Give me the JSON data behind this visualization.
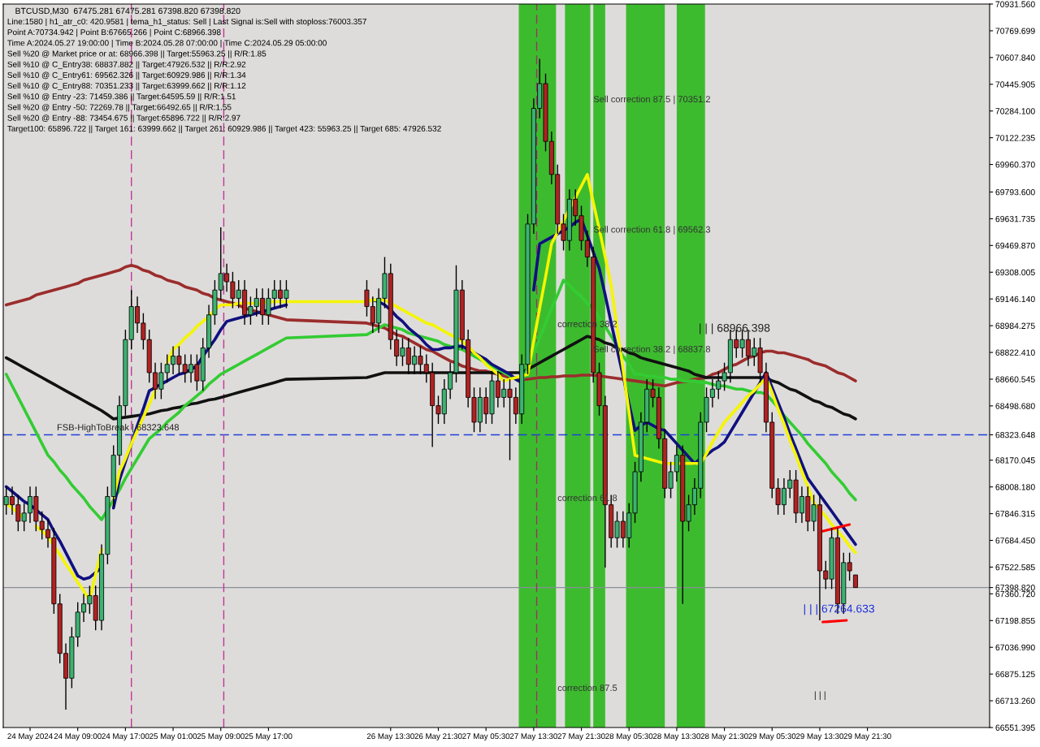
{
  "chart_data": {
    "type": "candlestick",
    "title": "BTCUSD,M30  67475.281 67475.281 67398.820 67398.820",
    "x": [
      "2024-05-23T21:00",
      "2024-05-23T22:00",
      "2024-05-23T23:00",
      "2024-05-24T00:00",
      "2024-05-24T01:00",
      "2024-05-24T02:00",
      "2024-05-24T03:00",
      "2024-05-24T04:00",
      "2024-05-24T05:00",
      "2024-05-24T06:00",
      "2024-05-24T07:00",
      "2024-05-24T08:00",
      "2024-05-24T09:00",
      "2024-05-24T10:00",
      "2024-05-24T11:00",
      "2024-05-24T12:00",
      "2024-05-24T13:00",
      "2024-05-24T14:00",
      "2024-05-24T15:00",
      "2024-05-24T16:00",
      "2024-05-24T17:00",
      "2024-05-24T18:00",
      "2024-05-24T19:00",
      "2024-05-24T20:00",
      "2024-05-24T21:00",
      "2024-05-24T22:00",
      "2024-05-24T23:00",
      "2024-05-25T00:00",
      "2024-05-25T01:00",
      "2024-05-25T02:00",
      "2024-05-25T03:00",
      "2024-05-25T04:00",
      "2024-05-25T05:00",
      "2024-05-25T06:00",
      "2024-05-25T07:00",
      "2024-05-25T08:00",
      "2024-05-25T09:00",
      "2024-05-25T10:00",
      "2024-05-25T11:00",
      "2024-05-25T12:00",
      "2024-05-25T13:00",
      "2024-05-25T14:00",
      "2024-05-25T15:00",
      "2024-05-25T16:00",
      "2024-05-25T17:00",
      "2024-05-25T18:00",
      "2024-05-25T19:00",
      "2024-05-25T20:00",
      "2024-05-26T09:30",
      "2024-05-26T10:30",
      "2024-05-26T11:30",
      "2024-05-26T12:30",
      "2024-05-26T13:30",
      "2024-05-26T14:30",
      "2024-05-26T15:30",
      "2024-05-26T16:30",
      "2024-05-26T17:30",
      "2024-05-26T18:30",
      "2024-05-26T19:30",
      "2024-05-26T20:30",
      "2024-05-26T21:30",
      "2024-05-26T22:30",
      "2024-05-26T23:30",
      "2024-05-27T00:30",
      "2024-05-27T01:30",
      "2024-05-27T02:30",
      "2024-05-27T03:30",
      "2024-05-27T04:30",
      "2024-05-27T05:30",
      "2024-05-27T06:30",
      "2024-05-27T07:30",
      "2024-05-27T08:30",
      "2024-05-27T09:30",
      "2024-05-27T10:30",
      "2024-05-27T11:30",
      "2024-05-27T12:30",
      "2024-05-27T13:30",
      "2024-05-27T14:30",
      "2024-05-27T15:30",
      "2024-05-27T16:30",
      "2024-05-27T17:30",
      "2024-05-27T18:30",
      "2024-05-27T19:30",
      "2024-05-27T20:30",
      "2024-05-27T21:30",
      "2024-05-27T22:30",
      "2024-05-27T23:30",
      "2024-05-28T00:30",
      "2024-05-28T01:30",
      "2024-05-28T02:30",
      "2024-05-28T03:30",
      "2024-05-28T04:30",
      "2024-05-28T05:30",
      "2024-05-28T06:30",
      "2024-05-28T07:30",
      "2024-05-28T08:30",
      "2024-05-28T09:30",
      "2024-05-28T10:30",
      "2024-05-28T11:30",
      "2024-05-28T12:30",
      "2024-05-28T13:30",
      "2024-05-28T14:30",
      "2024-05-28T15:30",
      "2024-05-28T16:30",
      "2024-05-28T17:30",
      "2024-05-28T18:30",
      "2024-05-28T19:30",
      "2024-05-28T20:30",
      "2024-05-28T21:30",
      "2024-05-28T22:30",
      "2024-05-28T23:30",
      "2024-05-29T00:30",
      "2024-05-29T01:30",
      "2024-05-29T02:30",
      "2024-05-29T03:30",
      "2024-05-29T04:30",
      "2024-05-29T05:30",
      "2024-05-29T06:30",
      "2024-05-29T07:30",
      "2024-05-29T08:30",
      "2024-05-29T09:30",
      "2024-05-29T10:30",
      "2024-05-29T11:30",
      "2024-05-29T12:30",
      "2024-05-29T13:30",
      "2024-05-29T14:30",
      "2024-05-29T15:30",
      "2024-05-29T16:30",
      "2024-05-29T17:30",
      "2024-05-29T18:30",
      "2024-05-29T19:30"
    ],
    "ohlc": [
      [
        67900,
        68010,
        67840,
        67950
      ],
      [
        67950,
        68010,
        67840,
        67900
      ],
      [
        67900,
        67960,
        67740,
        67800
      ],
      [
        67800,
        67910,
        67740,
        67850
      ],
      [
        67850,
        68010,
        67790,
        67950
      ],
      [
        67950,
        68010,
        67740,
        67800
      ],
      [
        67800,
        67860,
        67690,
        67750
      ],
      [
        67750,
        67810,
        67640,
        67700
      ],
      [
        67700,
        67760,
        67240,
        67300
      ],
      [
        67300,
        67360,
        66940,
        67000
      ],
      [
        67000,
        67060,
        66660,
        66850
      ],
      [
        66850,
        67160,
        66790,
        67100
      ],
      [
        67100,
        67310,
        67040,
        67250
      ],
      [
        67250,
        67360,
        67190,
        67300
      ],
      [
        67300,
        67410,
        67240,
        67350
      ],
      [
        67350,
        67410,
        67140,
        67200
      ],
      [
        67200,
        67660,
        67140,
        67600
      ],
      [
        67600,
        68010,
        67540,
        67950
      ],
      [
        67950,
        68260,
        67890,
        68200
      ],
      [
        68200,
        68560,
        68140,
        68500
      ],
      [
        68500,
        68960,
        68440,
        68900
      ],
      [
        68900,
        69200,
        68840,
        69100
      ],
      [
        69100,
        69160,
        68940,
        69000
      ],
      [
        69000,
        69060,
        68840,
        68900
      ],
      [
        68900,
        68960,
        68640,
        68700
      ],
      [
        68700,
        68760,
        68540,
        68600
      ],
      [
        68600,
        68760,
        68540,
        68700
      ],
      [
        68700,
        68810,
        68640,
        68750
      ],
      [
        68750,
        68860,
        68690,
        68800
      ],
      [
        68800,
        68860,
        68690,
        68750
      ],
      [
        68750,
        68810,
        68640,
        68700
      ],
      [
        68700,
        68810,
        68640,
        68750
      ],
      [
        68750,
        68810,
        68590,
        68650
      ],
      [
        68650,
        68910,
        68590,
        68850
      ],
      [
        68850,
        69110,
        68790,
        69050
      ],
      [
        69050,
        69260,
        68990,
        69200
      ],
      [
        69200,
        69580,
        69140,
        69300
      ],
      [
        69300,
        69360,
        69190,
        69250
      ],
      [
        69250,
        69310,
        69090,
        69150
      ],
      [
        69150,
        69260,
        69090,
        69200
      ],
      [
        69200,
        69260,
        68990,
        69050
      ],
      [
        69050,
        69160,
        68990,
        69100
      ],
      [
        69100,
        69210,
        69040,
        69150
      ],
      [
        69150,
        69210,
        68990,
        69050
      ],
      [
        69050,
        69210,
        68990,
        69150
      ],
      [
        69150,
        69260,
        69090,
        69200
      ],
      [
        69200,
        69260,
        69090,
        69150
      ],
      [
        69150,
        69260,
        69090,
        69200
      ],
      [
        69200,
        69260,
        69040,
        69100
      ],
      [
        69100,
        69160,
        68940,
        69000
      ],
      [
        69000,
        69210,
        68940,
        69150
      ],
      [
        69150,
        69400,
        69090,
        69300
      ],
      [
        69300,
        69360,
        68840,
        68900
      ],
      [
        68900,
        68960,
        68740,
        68800
      ],
      [
        68800,
        68910,
        68740,
        68850
      ],
      [
        68850,
        68910,
        68690,
        68750
      ],
      [
        68750,
        68860,
        68690,
        68800
      ],
      [
        68800,
        68860,
        68690,
        68750
      ],
      [
        68750,
        68810,
        68640,
        68700
      ],
      [
        68700,
        68760,
        68250,
        68500
      ],
      [
        68500,
        68560,
        68390,
        68450
      ],
      [
        68450,
        68660,
        68390,
        68600
      ],
      [
        68600,
        68760,
        68540,
        68700
      ],
      [
        68700,
        69350,
        68640,
        69200
      ],
      [
        69200,
        69260,
        68840,
        68900
      ],
      [
        68900,
        68960,
        68490,
        68550
      ],
      [
        68550,
        68610,
        68340,
        68400
      ],
      [
        68400,
        68610,
        68340,
        68550
      ],
      [
        68550,
        68610,
        68390,
        68450
      ],
      [
        68450,
        68710,
        68390,
        68650
      ],
      [
        68650,
        68710,
        68490,
        68550
      ],
      [
        68550,
        68660,
        68490,
        68600
      ],
      [
        68600,
        68660,
        68170,
        68550
      ],
      [
        68550,
        68610,
        68390,
        68450
      ],
      [
        68450,
        68810,
        68390,
        68750
      ],
      [
        68750,
        69660,
        68690,
        69600
      ],
      [
        69600,
        70360,
        69540,
        70300
      ],
      [
        70300,
        70600,
        70240,
        70450
      ],
      [
        70450,
        70510,
        70040,
        70100
      ],
      [
        70100,
        70160,
        69840,
        69900
      ],
      [
        69900,
        69960,
        69540,
        69600
      ],
      [
        69600,
        69660,
        69440,
        69500
      ],
      [
        69500,
        69810,
        69440,
        69750
      ],
      [
        69750,
        69810,
        69590,
        69650
      ],
      [
        69650,
        69710,
        69440,
        69500
      ],
      [
        69500,
        69560,
        69340,
        69400
      ],
      [
        69400,
        69460,
        68640,
        68700
      ],
      [
        68700,
        68760,
        68440,
        68500
      ],
      [
        68500,
        68560,
        67520,
        67900
      ],
      [
        67900,
        67960,
        67640,
        67700
      ],
      [
        67700,
        67860,
        67640,
        67800
      ],
      [
        67800,
        67860,
        67640,
        67700
      ],
      [
        67700,
        67910,
        67640,
        67850
      ],
      [
        67850,
        68160,
        67790,
        68100
      ],
      [
        68100,
        68460,
        68040,
        68400
      ],
      [
        68400,
        68660,
        68340,
        68600
      ],
      [
        68600,
        68660,
        68490,
        68550
      ],
      [
        68550,
        68610,
        68240,
        68300
      ],
      [
        68300,
        68360,
        67940,
        68000
      ],
      [
        68000,
        68160,
        67940,
        68100
      ],
      [
        68100,
        68260,
        68040,
        68200
      ],
      [
        68200,
        68260,
        67300,
        67800
      ],
      [
        67800,
        67960,
        67740,
        67900
      ],
      [
        67900,
        68060,
        67840,
        68000
      ],
      [
        68000,
        68460,
        67940,
        68400
      ],
      [
        68400,
        68610,
        68340,
        68550
      ],
      [
        68550,
        68660,
        68490,
        68600
      ],
      [
        68600,
        68710,
        68540,
        68650
      ],
      [
        68650,
        68760,
        68590,
        68700
      ],
      [
        68700,
        68960,
        68640,
        68900
      ],
      [
        68900,
        68960,
        68790,
        68850
      ],
      [
        68850,
        68960,
        68790,
        68900
      ],
      [
        68900,
        68960,
        68740,
        68800
      ],
      [
        68800,
        68910,
        68740,
        68850
      ],
      [
        68850,
        68910,
        68640,
        68700
      ],
      [
        68700,
        68760,
        68340,
        68400
      ],
      [
        68400,
        68460,
        67940,
        68000
      ],
      [
        68000,
        68060,
        67840,
        67900
      ],
      [
        67900,
        68060,
        67840,
        68000
      ],
      [
        68000,
        68110,
        67940,
        68050
      ],
      [
        68050,
        68110,
        67790,
        67850
      ],
      [
        67850,
        68010,
        67790,
        67950
      ],
      [
        67950,
        68010,
        67740,
        67800
      ],
      [
        67800,
        67960,
        67740,
        67900
      ],
      [
        67900,
        67960,
        67200,
        67500
      ],
      [
        67500,
        67560,
        67390,
        67450
      ],
      [
        67450,
        67760,
        67390,
        67700
      ],
      [
        67700,
        67760,
        67240,
        67300
      ],
      [
        67300,
        67610,
        67240,
        67550
      ],
      [
        67550,
        67610,
        67440,
        67500
      ],
      [
        67475.281,
        67475.281,
        67398.82,
        67398.82
      ]
    ],
    "series": [
      {
        "type": "line",
        "color": "#9b2d2d",
        "values": [
          69110,
          69120,
          69130,
          69140,
          69150,
          69170,
          69180,
          69190,
          69200,
          69210,
          69220,
          69230,
          69240,
          69260,
          69270,
          69280,
          69290,
          69300,
          69310,
          69320,
          69340,
          69350,
          69340,
          69320,
          69310,
          69290,
          69280,
          69260,
          69250,
          69240,
          69220,
          69210,
          69200,
          69180,
          69170,
          69150,
          69140,
          69130,
          69120,
          69110,
          69090,
          69080,
          69070,
          69060,
          69050,
          69040,
          69030,
          69020,
          69000,
          68990,
          68980,
          68970,
          68950,
          68930,
          68920,
          68900,
          68880,
          68860,
          68840,
          68830,
          68810,
          68790,
          68770,
          68760,
          68740,
          68730,
          68720,
          68710,
          68710,
          68700,
          68690,
          68680,
          68670,
          68670,
          68660,
          68660,
          68665,
          68670,
          68670,
          68675,
          68675,
          68680,
          68680,
          68680,
          68685,
          68685,
          68685,
          68680,
          68675,
          68670,
          68665,
          68660,
          68655,
          68650,
          68645,
          68640,
          68630,
          68625,
          68620,
          68630,
          68640,
          68645,
          68650,
          68660,
          68665,
          68670,
          68690,
          68700,
          68720,
          68740,
          68750,
          68770,
          68790,
          68800,
          68820,
          68830,
          68830,
          68820,
          68820,
          68810,
          68800,
          68790,
          68780,
          68760,
          68750,
          68740,
          68720,
          68700,
          68690,
          68670,
          68650
        ]
      },
      {
        "type": "line",
        "color": "#111111",
        "values": [
          68790,
          68770,
          68750,
          68730,
          68710,
          68690,
          68670,
          68650,
          68630,
          68610,
          68590,
          68570,
          68550,
          68530,
          68510,
          68490,
          68470,
          68445,
          68420,
          68425,
          68430,
          68435,
          68440,
          68445,
          68450,
          68460,
          68470,
          68475,
          68485,
          68490,
          68500,
          68510,
          68515,
          68525,
          68535,
          68540,
          68550,
          68560,
          68570,
          68580,
          68590,
          68600,
          68610,
          68620,
          68630,
          68640,
          68650,
          68660,
          68670,
          68680,
          68690,
          68700,
          68700,
          68700,
          68700,
          68700,
          68700,
          68700,
          68700,
          68700,
          68700,
          68700,
          68700,
          68700,
          68700,
          68700,
          68700,
          68700,
          68700,
          68700,
          68700,
          68700,
          68700,
          68700,
          68700,
          68720,
          68740,
          68760,
          68780,
          68800,
          68820,
          68840,
          68860,
          68880,
          68900,
          68920,
          68910,
          68900,
          68880,
          68870,
          68850,
          68840,
          68820,
          68810,
          68790,
          68780,
          68770,
          68760,
          68750,
          68740,
          68730,
          68720,
          68710,
          68690,
          68680,
          68670,
          68670,
          68670,
          68670,
          68670,
          68670,
          68670,
          68670,
          68670,
          68670,
          68670,
          68650,
          68640,
          68620,
          68600,
          68590,
          68570,
          68550,
          68530,
          68520,
          68500,
          68490,
          68470,
          68450,
          68440,
          68420
        ]
      },
      {
        "type": "line",
        "color": "#33cc33",
        "values": [
          68690,
          68620,
          68550,
          68480,
          68410,
          68340,
          68270,
          68200,
          68160,
          68110,
          68070,
          68020,
          67980,
          67940,
          67890,
          67850,
          67810,
          67870,
          67930,
          67990,
          68060,
          68120,
          68180,
          68240,
          68300,
          68330,
          68360,
          68400,
          68430,
          68460,
          68500,
          68530,
          68560,
          68590,
          68630,
          68660,
          68690,
          68710,
          68730,
          68750,
          68770,
          68790,
          68810,
          68830,
          68850,
          68870,
          68890,
          68910,
          68930,
          68950,
          68970,
          68990,
          68980,
          68970,
          68960,
          68940,
          68930,
          68920,
          68910,
          68900,
          68890,
          68870,
          68860,
          68850,
          68840,
          68820,
          68800,
          68780,
          68760,
          68740,
          68720,
          68700,
          68680,
          68660,
          68640,
          68730,
          68820,
          68910,
          69000,
          69090,
          69170,
          69260,
          69230,
          69190,
          69160,
          69120,
          69090,
          69030,
          68980,
          68920,
          68860,
          68800,
          68750,
          68690,
          68690,
          68680,
          68680,
          68670,
          68670,
          68660,
          68660,
          68650,
          68650,
          68650,
          68640,
          68640,
          68630,
          68620,
          68620,
          68610,
          68600,
          68600,
          68590,
          68580,
          68580,
          68570,
          68530,
          68490,
          68440,
          68400,
          68360,
          68320,
          68270,
          68230,
          68190,
          68150,
          68100,
          68060,
          68020,
          67970,
          67930
        ]
      },
      {
        "type": "line",
        "color": "#10107f",
        "values": [
          68010,
          67980,
          67950,
          67920,
          67900,
          67870,
          67840,
          67810,
          67740,
          67680,
          67610,
          67540,
          67470,
          67450,
          67460,
          67490,
          67520,
          null,
          67880,
          68050,
          68160,
          68270,
          68380,
          68480,
          68590,
          68610,
          68630,
          68650,
          68670,
          68690,
          68700,
          68720,
          68740,
          68800,
          68850,
          68900,
          68960,
          69010,
          69020,
          69030,
          69040,
          69050,
          69060,
          69070,
          69080,
          69090,
          69100,
          69110,
          null,
          69140,
          69130,
          69110,
          69080,
          69040,
          69010,
          68970,
          68940,
          68910,
          68870,
          68840,
          68840,
          68850,
          68850,
          68860,
          68860,
          68840,
          68820,
          68800,
          68780,
          68750,
          68730,
          68710,
          68690,
          68660,
          68640,
          null,
          69200,
          69480,
          69500,
          69520,
          69540,
          69560,
          69580,
          69610,
          69630,
          69530,
          69430,
          69330,
          69170,
          69000,
          68840,
          68680,
          68510,
          68350,
          68380,
          68400,
          68380,
          68360,
          68350,
          68310,
          68270,
          68230,
          68190,
          68150,
          68180,
          68200,
          68230,
          68250,
          68280,
          68340,
          68400,
          68460,
          68520,
          68580,
          68640,
          68700,
          68610,
          68520,
          68430,
          68330,
          68240,
          68150,
          68060,
          68010,
          67960,
          67910,
          67860,
          67810,
          67760,
          67710,
          67660
        ]
      },
      {
        "type": "line",
        "color": "#f5f500",
        "values": [
          67910,
          67880,
          67850,
          67820,
          null,
          67770,
          67740,
          67710,
          67650,
          67600,
          67540,
          67490,
          67430,
          67380,
          67320,
          67480,
          67630,
          null,
          67940,
          68100,
          68180,
          68270,
          68350,
          68430,
          68510,
          68590,
          null,
          68760,
          68840,
          68870,
          68910,
          68940,
          68980,
          69010,
          69040,
          69080,
          69110,
          69110,
          69110,
          69120,
          69120,
          69120,
          69120,
          69120,
          69130,
          69130,
          69130,
          69130,
          69130,
          69140,
          69140,
          69140,
          69120,
          69100,
          69080,
          69060,
          69040,
          69020,
          69000,
          68990,
          68970,
          68950,
          68930,
          68910,
          68890,
          68860,
          68820,
          68790,
          68750,
          68720,
          68690,
          68650,
          68660,
          68670,
          68680,
          68690,
          68890,
          69090,
          69280,
          69480,
          69550,
          69620,
          69690,
          69760,
          69830,
          69900,
          69730,
          69570,
          69400,
          69230,
          68970,
          68720,
          68460,
          68200,
          68190,
          68180,
          68170,
          68160,
          68150,
          68150,
          68150,
          68150,
          68150,
          68150,
          68150,
          68210,
          68280,
          68340,
          68400,
          68440,
          68480,
          68520,
          68560,
          68590,
          68630,
          68670,
          68580,
          68480,
          68390,
          68290,
          68200,
          68100,
          68010,
          67910,
          67870,
          67830,
          67780,
          67740,
          67700,
          67650,
          67610
        ]
      },
      {
        "type": "line",
        "color": "#ff0000",
        "x": [
          "2024-05-29T14:00",
          "2024-05-29T18:30"
        ],
        "values": [
          67740,
          67780
        ]
      },
      {
        "type": "line",
        "color": "#ff0000",
        "x": [
          "2024-05-29T14:00",
          "2024-05-29T18:00"
        ],
        "values": [
          67190,
          67200
        ]
      }
    ],
    "xlim": [
      "2024-05-23T20:30",
      "2024-05-30T18:00"
    ],
    "xticks": [
      {
        "value": "2024-05-24T01:00",
        "label": "24 May 2024"
      },
      {
        "value": "2024-05-24T09:00",
        "label": "24 May 09:00"
      },
      {
        "value": "2024-05-24T17:00",
        "label": "24 May 17:00"
      },
      {
        "value": "2024-05-25T01:00",
        "label": "25 May 01:00"
      },
      {
        "value": "2024-05-25T09:00",
        "label": "25 May 09:00"
      },
      {
        "value": "2024-05-25T17:00",
        "label": "25 May 17:00"
      },
      {
        "value": "2024-05-26T13:30",
        "label": "26 May 13:30"
      },
      {
        "value": "2024-05-26T21:30",
        "label": "26 May 21:30"
      },
      {
        "value": "2024-05-27T05:30",
        "label": "27 May 05:30"
      },
      {
        "value": "2024-05-27T13:30",
        "label": "27 May 13:30"
      },
      {
        "value": "2024-05-27T21:30",
        "label": "27 May 21:30"
      },
      {
        "value": "2024-05-28T05:30",
        "label": "28 May 05:30"
      },
      {
        "value": "2024-05-28T13:30",
        "label": "28 May 13:30"
      },
      {
        "value": "2024-05-28T21:30",
        "label": "28 May 21:30"
      },
      {
        "value": "2024-05-29T05:30",
        "label": "29 May 05:30"
      },
      {
        "value": "2024-05-29T13:30",
        "label": "29 May 13:30"
      },
      {
        "value": "2024-05-29T21:30",
        "label": "29 May 21:30"
      }
    ],
    "ylim": [
      66551.395,
      70931.56
    ],
    "yticks": [
      {
        "value": 70931.56,
        "label": "70931.560"
      },
      70769.699,
      {
        "value": 70607.84,
        "label": "70607.840"
      },
      70445.905,
      {
        "value": 70284.1,
        "label": "70284.100"
      },
      70122.235,
      {
        "value": 69960.37,
        "label": "69960.370"
      },
      {
        "value": 69793.6,
        "label": "69793.600"
      },
      69631.735,
      {
        "value": 69469.87,
        "label": "69469.870"
      },
      69308.005,
      {
        "value": 69146.14,
        "label": "69146.140"
      },
      68984.275,
      {
        "value": 68822.41,
        "label": "68822.410"
      },
      68660.545,
      {
        "value": 68498.68,
        "label": "68498.680"
      },
      68323.648,
      68170.045,
      {
        "value": 68008.18,
        "label": "68008.180"
      },
      67846.315,
      {
        "value": 67684.45,
        "label": "67684.450"
      },
      67522.585,
      {
        "value": 67398.82,
        "label": "67398.820"
      },
      {
        "value": 67360.72,
        "label": "67360.720"
      },
      67198.855,
      {
        "value": 67036.99,
        "label": "67036.990"
      },
      66875.125,
      {
        "value": 66713.26,
        "label": "66713.260"
      },
      66551.395
    ],
    "grid": false,
    "bands": [
      {
        "axis": "x",
        "from": "2024-05-27T11:00",
        "to": "2024-05-27T17:15",
        "color": "#3dbb2f"
      },
      {
        "axis": "x",
        "from": "2024-05-27T18:45",
        "to": "2024-05-27T23:00",
        "color": "#3dbb2f"
      },
      {
        "axis": "x",
        "from": "2024-05-27T23:30",
        "to": "2024-05-28T01:30",
        "color": "#3dbb2f"
      },
      {
        "axis": "x",
        "from": "2024-05-28T05:00",
        "to": "2024-05-28T11:30",
        "color": "#3dbb2f"
      },
      {
        "axis": "x",
        "from": "2024-05-28T13:30",
        "to": "2024-05-28T18:15",
        "color": "#3dbb2f"
      }
    ],
    "ref_lines": [
      {
        "axis": "y",
        "value": 68323.648,
        "label": "FSB-HighToBreak | 68323.648",
        "color": "#1f3fd8",
        "line_style": "dashed"
      },
      {
        "axis": "y",
        "value": 67398.82,
        "color": "#8a8f99",
        "line_style": "solid"
      },
      {
        "axis": "x",
        "value": "2024-05-24T18:00",
        "color": "#c0359a",
        "line_style": "dashed"
      },
      {
        "axis": "x",
        "value": "2024-05-25T09:30",
        "color": "#c0359a",
        "line_style": "dashed"
      },
      {
        "axis": "x",
        "value": "2024-05-27T14:00",
        "color": "#993366",
        "line_style": "dashed"
      }
    ],
    "annotations": [
      "Line:1580 | h1_atr_c0: 420.9581 | tema_h1_status: Sell | Last Signal is:Sell with stoploss:76003.357",
      "Point A:70734.942 | Point B:67665.266 | Point C:68966.398",
      "Time A:2024.05.27 19:00:00 | Time B:2024.05.28 07:00:00 | Time C:2024.05.29 05:00:00",
      "Sell %20 @ Market price or at: 68966.398 || Target:55963.25 || R/R:1.85",
      "Sell %10 @ C_Entry38: 68837.882 || Target:47926.532 || R/R:2.92",
      "Sell %10 @ C_Entry61: 69562.326 || Target:60929.986 || R/R:1.34",
      "Sell %10 @ C_Entry88: 70351.233 || Target:63999.662 || R/R:1.12",
      "Sell %10 @ Entry -23: 71459.386 || Target:64595.59 || R/R:1.51",
      "Sell %20 @ Entry -50: 72269.78 || Target:66492.65 || R/R:1.55",
      "Sell %20 @ Entry -88: 73454.675 || Target:65896.722 || R/R:2.97",
      "Target100: 65896.722 || Target 161: 63999.662 || Target 261: 60929.986 || Target 423: 55963.25 || Target 685: 47926.532",
      {
        "text": "Sell correction 87.5 | 70351.2",
        "x": "2024-05-27T23:30",
        "y": 70351.2
      },
      {
        "text": "Sell correction 61.8 | 69562.3",
        "x": "2024-05-27T23:30",
        "y": 69562.3
      },
      {
        "text": "Sell correction 38.2 | 68837.8",
        "x": "2024-05-27T23:30",
        "y": 68837.8
      },
      {
        "text": "correction 38.2",
        "x": "2024-05-27T17:30",
        "y": 68990
      },
      {
        "text": "correction 61.8",
        "x": "2024-05-27T17:30",
        "y": 67937
      },
      {
        "text": "correction 87.5",
        "x": "2024-05-27T17:30",
        "y": 66787
      },
      "| | | 68966.398",
      "| | | 67264.633",
      "| | |"
    ]
  }
}
